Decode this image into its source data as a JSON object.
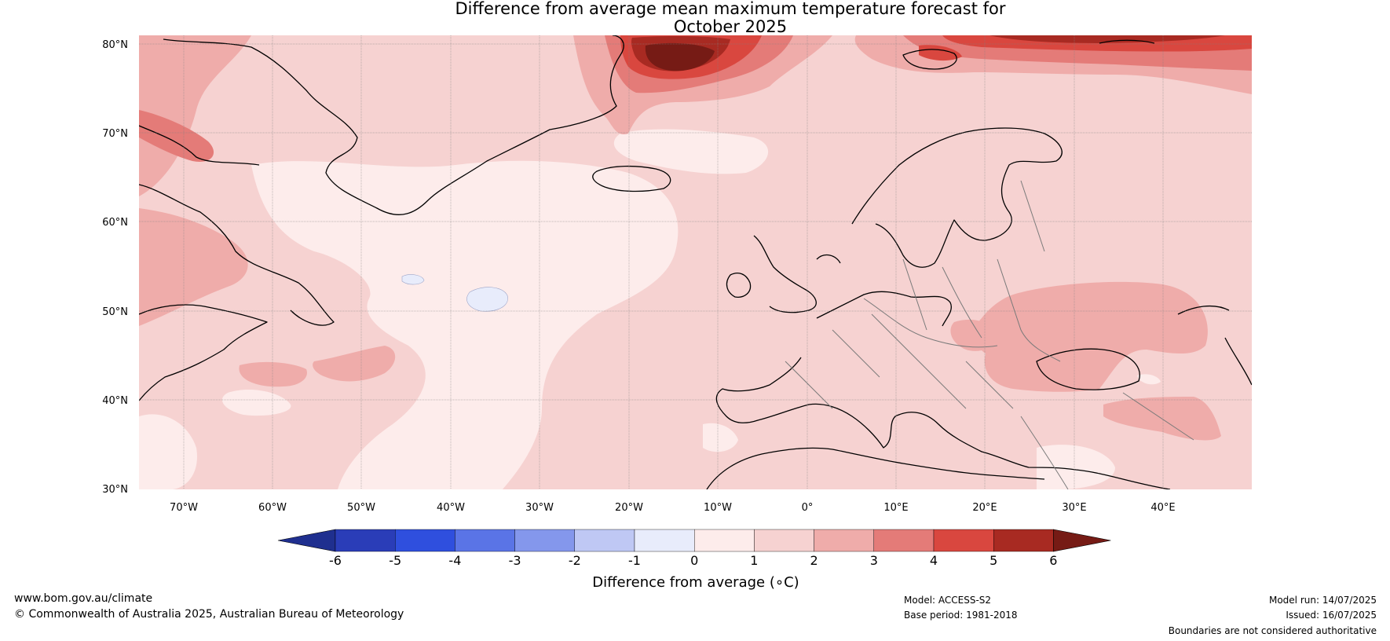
{
  "title": {
    "line1": "Difference from average mean maximum temperature forecast for",
    "line2": "October 2025"
  },
  "map": {
    "lat_labels": [
      "80°N",
      "70°N",
      "60°N",
      "50°N",
      "40°N",
      "30°N"
    ],
    "lon_labels": [
      "70°W",
      "60°W",
      "50°W",
      "40°W",
      "30°W",
      "20°W",
      "10°W",
      "0°",
      "10°E",
      "20°E",
      "30°E",
      "40°E"
    ]
  },
  "colorbar": {
    "title": "Difference from average (∘C)",
    "ticks": [
      "-6",
      "-5",
      "-4",
      "-3",
      "-2",
      "-1",
      "0",
      "1",
      "2",
      "3",
      "4",
      "5",
      "6"
    ],
    "colors": [
      "#1f2f8f",
      "#2a3db8",
      "#2f4fde",
      "#5a74e6",
      "#8497ec",
      "#bfc8f4",
      "#e8ecfb",
      "#fdeceb",
      "#f6d2d1",
      "#efacaa",
      "#e47b78",
      "#d9473f",
      "#a82a22",
      "#761b15"
    ]
  },
  "footer": {
    "site": "www.bom.gov.au/climate",
    "copyright": "© Commonwealth of Australia 2025, Australian Bureau of Meteorology",
    "model": "Model: ACCESS-S2",
    "base_period": "Base period: 1981-2018",
    "model_run": "Model run: 14/07/2025",
    "issued": "Issued: 16/07/2025",
    "disclaimer": "Boundaries are not considered authoritative"
  }
}
